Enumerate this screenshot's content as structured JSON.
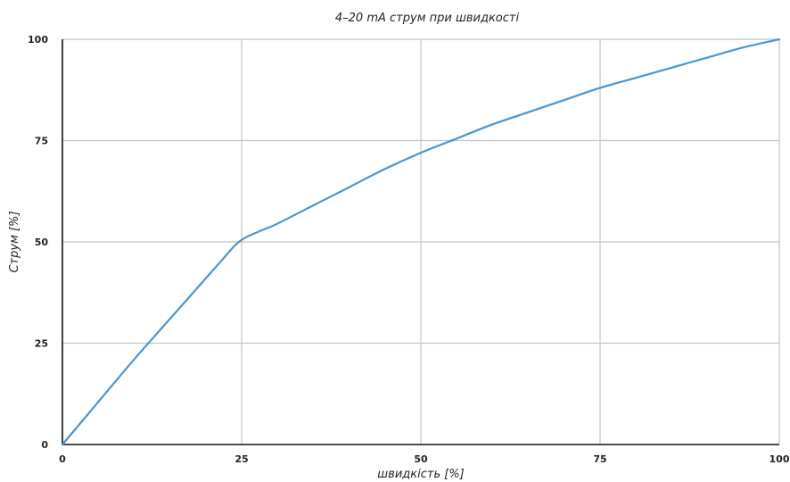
{
  "chart_data": {
    "type": "line",
    "title": "4–20 mA струм при  швидкості",
    "xlabel": "швидкість [%]",
    "ylabel": "Струм [%]",
    "xlim": [
      0,
      100
    ],
    "ylim": [
      0,
      100
    ],
    "x_ticks": [
      0,
      25,
      50,
      75,
      100
    ],
    "y_ticks": [
      0,
      25,
      50,
      75,
      100
    ],
    "x_tick_labels": [
      "0",
      "25",
      "50",
      "75",
      "100"
    ],
    "y_tick_labels": [
      "0",
      "25",
      "50",
      "75",
      "100"
    ],
    "grid": true,
    "legend": "none",
    "colors": {
      "series": "#4a96cf",
      "grid": "#c4c4c4",
      "axis": "#111111"
    },
    "series": [
      {
        "x": [
          0,
          5,
          10,
          15,
          20,
          22,
          24,
          25,
          26,
          28,
          30,
          35,
          40,
          45,
          50,
          55,
          60,
          65,
          70,
          75,
          80,
          85,
          90,
          95,
          100
        ],
        "y": [
          0,
          10.5,
          21,
          31,
          41,
          45,
          49,
          50.5,
          51.5,
          53,
          54.5,
          59,
          63.5,
          68,
          72,
          75.5,
          79,
          82,
          85,
          88,
          90.5,
          93,
          95.5,
          98,
          100
        ]
      }
    ]
  }
}
